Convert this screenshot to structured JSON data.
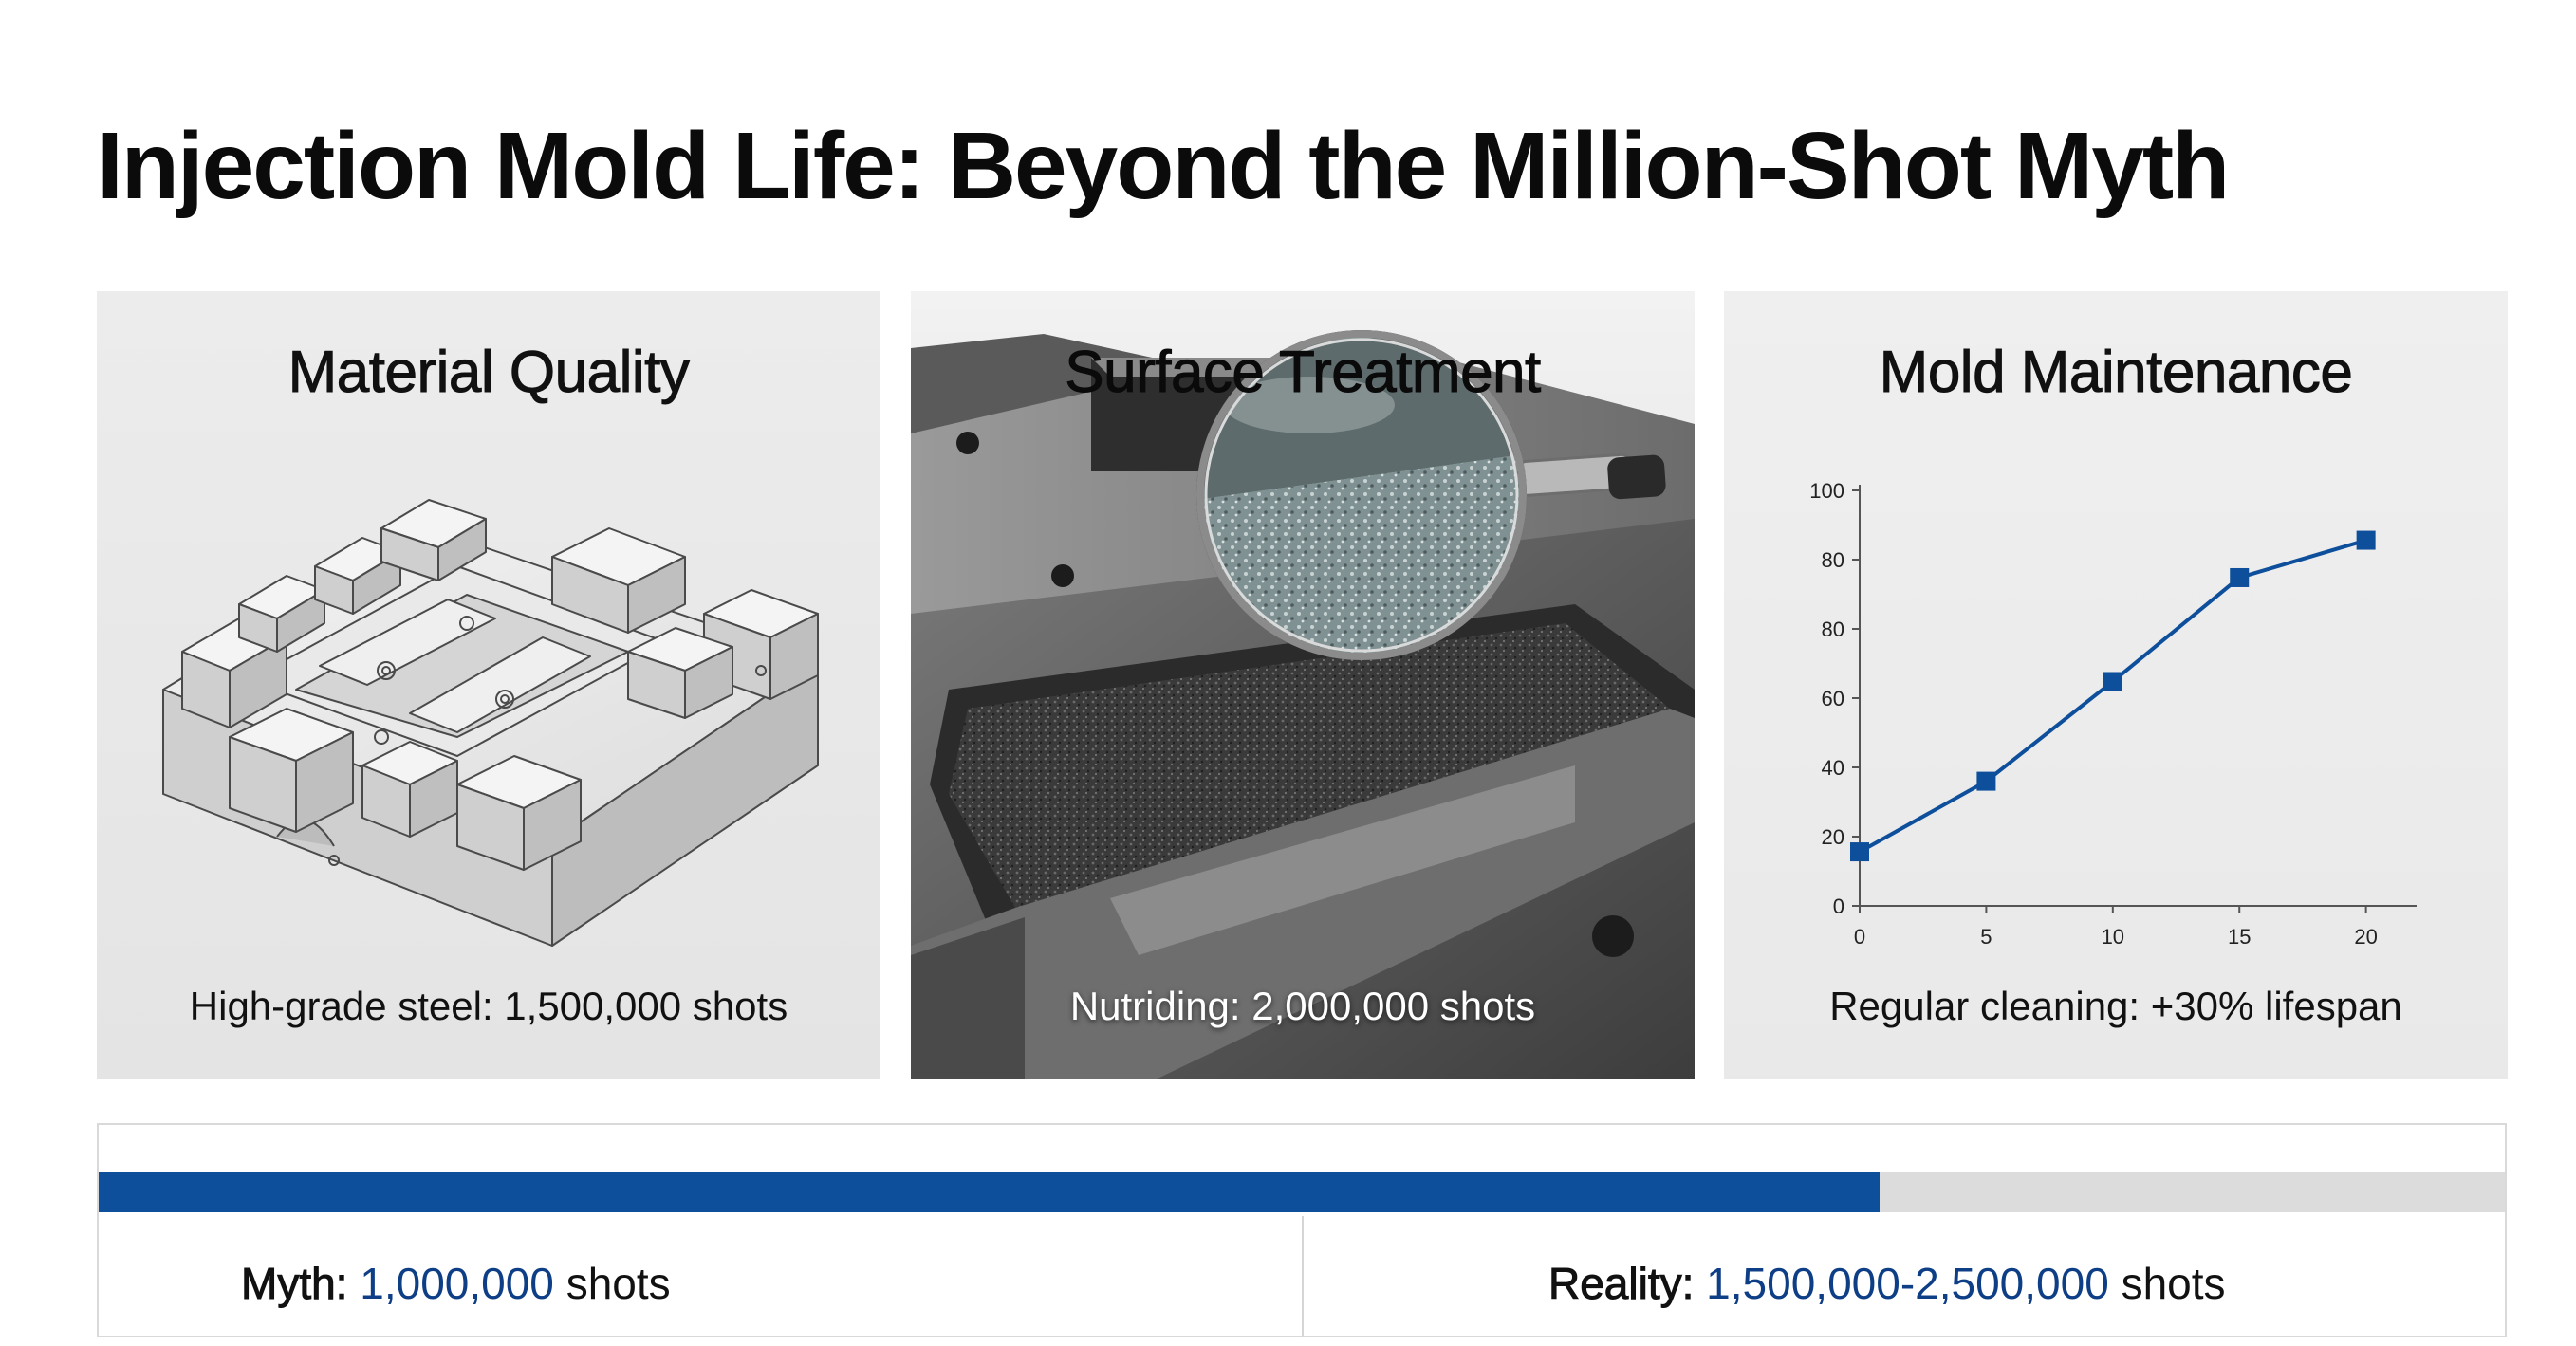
{
  "title": "Injection Mold Life: Beyond the Million-Shot Myth",
  "panels": [
    {
      "title": "Material Quality",
      "caption": "High-grade steel: 1,500,000 shots",
      "illustration": "mold-base-line-drawing"
    },
    {
      "title": "Surface Treatment",
      "caption": "Nutriding: 2,000,000 shots",
      "illustration": "magnifying-glass-over-textured-mold-cavity"
    },
    {
      "title": "Mold Maintenance",
      "caption": "Regular cleaning: +30% lifespan",
      "illustration": "line-chart"
    }
  ],
  "chart_data": {
    "type": "line",
    "x": [
      0,
      5,
      10,
      15,
      20
    ],
    "values": [
      13,
      30,
      54,
      79,
      88
    ],
    "x_ticks": [
      "0",
      "5",
      "10",
      "15",
      "20"
    ],
    "y_ticks": [
      "0",
      "20",
      "40",
      "60",
      "80",
      "80",
      "100"
    ],
    "title": "",
    "xlabel": "",
    "ylabel": "",
    "xlim": [
      0,
      22
    ],
    "ylim": [
      0,
      100
    ],
    "grid": false,
    "color": "#0e4f9c"
  },
  "comparison": {
    "progress_fraction": 0.74,
    "fill_color": "#0e4f9c",
    "myth_label": "Myth:",
    "myth_value": "1,000,000",
    "myth_unit": "shots",
    "reality_label": "Reality:",
    "reality_value": "1,500,000-2,500,000",
    "reality_unit": "shots"
  }
}
